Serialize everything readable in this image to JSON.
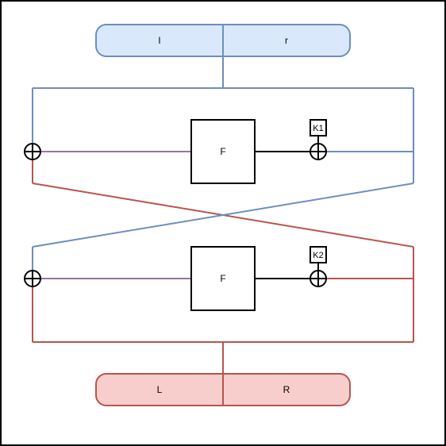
{
  "colors": {
    "blue": "#6c8ebf",
    "red": "#b85450",
    "purple": "#9673a6",
    "black": "#000000",
    "top_fill": "#dae8fc",
    "bottom_fill": "#f8cecc"
  },
  "diagram": {
    "input": {
      "left_label": "l",
      "right_label": "r"
    },
    "round1": {
      "function_label": "F",
      "key_label": "K1"
    },
    "round2": {
      "function_label": "F",
      "key_label": "K2"
    },
    "output": {
      "left_label": "L",
      "right_label": "R"
    }
  }
}
